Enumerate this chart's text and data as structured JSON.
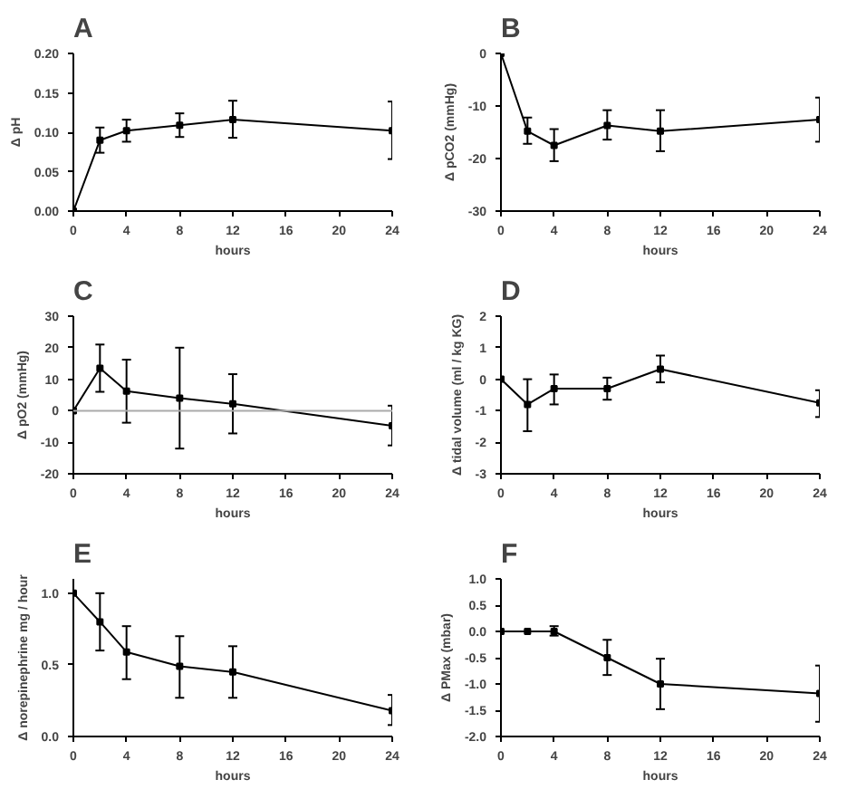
{
  "chart_data": [
    {
      "type": "line",
      "title": "A",
      "xlabel": "hours",
      "ylabel": "Δ pH",
      "x": [
        0,
        2,
        4,
        8,
        12,
        24
      ],
      "values": [
        0,
        0.09,
        0.102,
        0.109,
        0.116,
        0.102
      ],
      "errors": [
        null,
        [
          0.074,
          0.106
        ],
        [
          0.088,
          0.116
        ],
        [
          0.094,
          0.124
        ],
        [
          0.093,
          0.14
        ],
        [
          0.066,
          0.139
        ]
      ],
      "xlim": [
        0,
        24
      ],
      "xticks": [
        0,
        4,
        8,
        12,
        16,
        20,
        24
      ],
      "ylim": [
        0,
        0.2
      ],
      "yticks": [
        {
          "value": 0,
          "label": "0.00"
        },
        {
          "value": 0.05,
          "label": "0.05"
        },
        {
          "value": 0.1,
          "label": "0.10"
        },
        {
          "value": 0.15,
          "label": "0.15"
        },
        {
          "value": 0.2,
          "label": "0.20"
        }
      ],
      "marker": "square",
      "grid": false
    },
    {
      "type": "line",
      "title": "B",
      "xlabel": "hours",
      "ylabel": "Δ pCO2 (mmHg)",
      "x": [
        0,
        2,
        4,
        8,
        12,
        24
      ],
      "values": [
        0,
        -14.8,
        -17.5,
        -13.7,
        -14.8,
        -12.6
      ],
      "errors": [
        null,
        [
          -17.2,
          -12.2
        ],
        [
          -20.5,
          -14.4
        ],
        [
          -16.4,
          -10.8
        ],
        [
          -18.6,
          -10.8
        ],
        [
          -16.8,
          -8.4
        ]
      ],
      "xlim": [
        0,
        24
      ],
      "xticks": [
        0,
        4,
        8,
        12,
        16,
        20,
        24
      ],
      "ylim": [
        -30,
        0
      ],
      "yticks": [
        -30,
        -20,
        -10,
        0
      ],
      "marker": "square",
      "grid": false
    },
    {
      "type": "line",
      "title": "C",
      "xlabel": "hours",
      "ylabel": "Δ pO2 (mmHg)",
      "x": [
        0,
        2,
        4,
        8,
        12,
        24
      ],
      "values": [
        0,
        13.5,
        6.2,
        4,
        2.2,
        -4.8
      ],
      "errors": [
        null,
        [
          6,
          21
        ],
        [
          -3.8,
          16.2
        ],
        [
          -12,
          20
        ],
        [
          -7.2,
          11.6
        ],
        [
          -11,
          1.6
        ]
      ],
      "xlim": [
        0,
        24
      ],
      "xticks": [
        0,
        4,
        8,
        12,
        16,
        20,
        24
      ],
      "ylim": [
        -20,
        30
      ],
      "yticks": [
        -20,
        -10,
        0,
        10,
        20,
        30
      ],
      "ref_lines": [
        {
          "axis": "y",
          "value": 0,
          "color": "#aaaaaa"
        }
      ],
      "marker": "square",
      "grid": false
    },
    {
      "type": "line",
      "title": "D",
      "xlabel": "hours",
      "ylabel": "Δ tidal volume (ml / kg KG)",
      "x": [
        0,
        2,
        4,
        8,
        12,
        24
      ],
      "values": [
        0,
        -0.8,
        -0.3,
        -0.3,
        0.32,
        -0.75
      ],
      "errors": [
        null,
        [
          -1.65,
          0.0
        ],
        [
          -0.8,
          0.15
        ],
        [
          -0.65,
          0.05
        ],
        [
          -0.1,
          0.75
        ],
        [
          -1.2,
          -0.35
        ]
      ],
      "xlim": [
        0,
        24
      ],
      "xticks": [
        0,
        4,
        8,
        12,
        16,
        20,
        24
      ],
      "ylim": [
        -3,
        2
      ],
      "yticks": [
        -3,
        -2,
        -1,
        0,
        1,
        2
      ],
      "marker": "square",
      "grid": false
    },
    {
      "type": "line",
      "title": "E",
      "xlabel": "hours",
      "ylabel": "Δ norepinephrine mg / hour",
      "x": [
        0,
        2,
        4,
        8,
        12,
        24
      ],
      "values": [
        1.0,
        0.8,
        0.59,
        0.49,
        0.45,
        0.18
      ],
      "errors": [
        null,
        [
          0.6,
          1.0
        ],
        [
          0.4,
          0.77
        ],
        [
          0.27,
          0.7
        ],
        [
          0.27,
          0.63
        ],
        [
          0.08,
          0.29
        ]
      ],
      "xlim": [
        0,
        24
      ],
      "xticks": [
        0,
        4,
        8,
        12,
        16,
        20,
        24
      ],
      "ylim": [
        0,
        1.1
      ],
      "yticks": [
        {
          "value": 0,
          "label": "0.0"
        },
        {
          "value": 0.5,
          "label": "0.5"
        },
        {
          "value": 1,
          "label": "1.0"
        }
      ],
      "marker": "square",
      "grid": false
    },
    {
      "type": "line",
      "title": "F",
      "xlabel": "hours",
      "ylabel": "Δ PMax (mbar)",
      "x": [
        0,
        2,
        4,
        8,
        12,
        24
      ],
      "values": [
        0,
        0,
        0,
        -0.5,
        -1.0,
        -1.18
      ],
      "errors": [
        null,
        null,
        [
          -0.08,
          0.1
        ],
        [
          -0.83,
          -0.16
        ],
        [
          -1.48,
          -0.52
        ],
        [
          -1.72,
          -0.65
        ]
      ],
      "xlim": [
        0,
        24
      ],
      "xticks": [
        0,
        4,
        8,
        12,
        16,
        20,
        24
      ],
      "ylim": [
        -2,
        1
      ],
      "yticks": [
        {
          "value": -2,
          "label": "-2.0"
        },
        {
          "value": -1.5,
          "label": "-1.5"
        },
        {
          "value": -1,
          "label": "-1.0"
        },
        {
          "value": -0.5,
          "label": "-0.5"
        },
        {
          "value": 0,
          "label": "0.0"
        },
        {
          "value": 0.5,
          "label": "0.5"
        },
        {
          "value": 1,
          "label": "1.0"
        }
      ],
      "marker": "square",
      "grid": false
    }
  ]
}
